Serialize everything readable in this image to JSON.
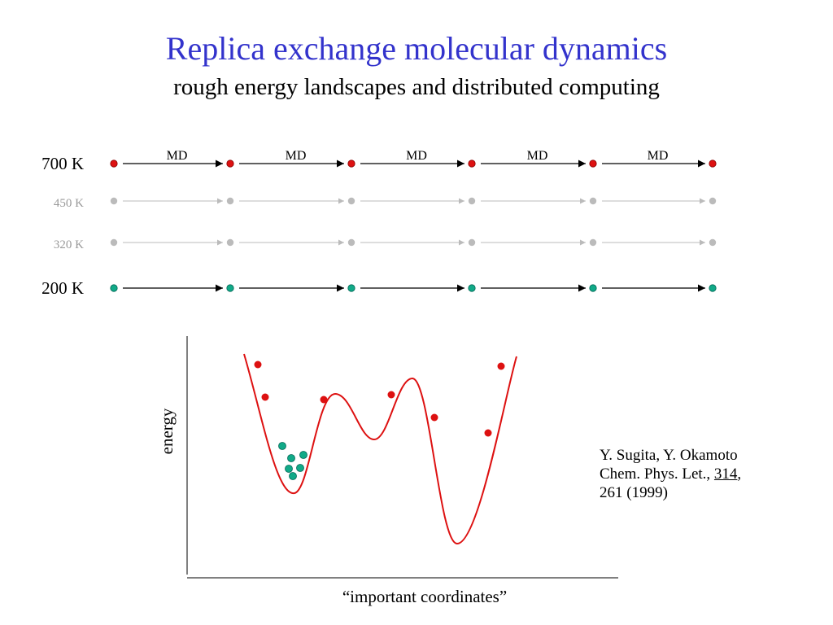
{
  "title": "Replica exchange molecular dynamics",
  "subtitle": "rough energy landscapes and distributed computing",
  "md_label": "MD",
  "colors": {
    "title": "#3333cc",
    "hot": "#dd1111",
    "cold": "#11aa88",
    "faded": "#bbbbbb",
    "curve": "#dd1111"
  },
  "replicas": [
    {
      "label": "700 K",
      "style": "hot",
      "show_md": true
    },
    {
      "label": "450 K",
      "style": "faded",
      "show_md": false
    },
    {
      "label": "320 K",
      "style": "faded",
      "show_md": false
    },
    {
      "label": "200 K",
      "style": "cold",
      "show_md": true
    }
  ],
  "landscape": {
    "ylabel": "energy",
    "xlabel": "“important coordinates”"
  },
  "citation": {
    "authors": "Y. Sugita, Y. Okamoto",
    "journal": "Chem. Phys. Let., ",
    "volume": "314",
    "comma": ",",
    "pages_year": "261 (1999)"
  }
}
